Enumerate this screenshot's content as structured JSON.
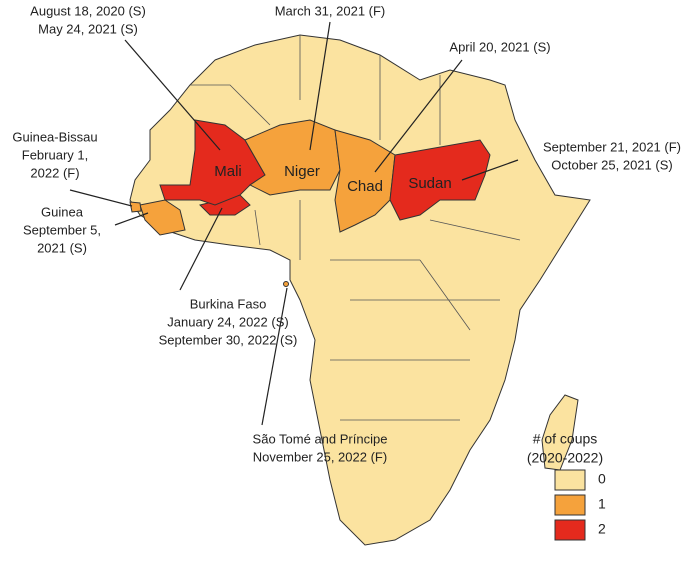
{
  "map": {
    "countries": [
      {
        "name": "Mali",
        "coups": 2
      },
      {
        "name": "Niger",
        "coups": 1
      },
      {
        "name": "Chad",
        "coups": 1
      },
      {
        "name": "Sudan",
        "coups": 2
      }
    ],
    "unlabeled_countries": [
      {
        "coups": 1
      },
      {
        "coups": 2
      },
      {
        "coups": 1
      },
      {
        "coups": 1
      }
    ],
    "annotations": [
      {
        "lines": [
          "August 18, 2020 (S)",
          "May 24, 2021 (S)"
        ]
      },
      {
        "lines": [
          "March 31, 2021 (F)"
        ]
      },
      {
        "lines": [
          "April 20, 2021 (S)"
        ]
      },
      {
        "lines": [
          "September 21, 2021 (F)",
          "October 25, 2021 (S)"
        ]
      },
      {
        "lines": [
          "Guinea-Bissau",
          "February 1,",
          "2022 (F)"
        ]
      },
      {
        "lines": [
          "Guinea",
          "September 5,",
          "2021 (S)"
        ]
      },
      {
        "lines": [
          "Burkina Faso",
          "January 24, 2022 (S)",
          "September 30, 2022 (S)"
        ]
      },
      {
        "lines": [
          "São Tomé and Príncipe",
          "November 25, 2022 (F)"
        ]
      }
    ],
    "legend": {
      "title_lines": [
        "# of coups",
        "(2020-2022)"
      ],
      "items": [
        {
          "value": 0,
          "color": "#fbe3a0"
        },
        {
          "value": 1,
          "color": "#f5a23c"
        },
        {
          "value": 2,
          "color": "#e42a1d"
        }
      ]
    }
  }
}
